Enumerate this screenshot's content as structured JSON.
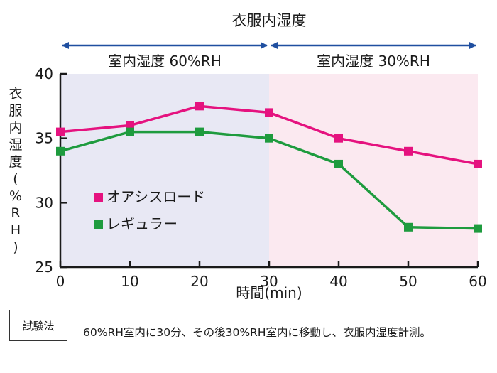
{
  "chart_data": {
    "type": "line",
    "title": "衣服内湿度",
    "xlabel": "時間(min)",
    "ylabel": "衣服内湿度(%RH)",
    "x": [
      0,
      10,
      20,
      30,
      40,
      50,
      60
    ],
    "xlim": [
      0,
      60
    ],
    "ylim": [
      25,
      40
    ],
    "xticks": [
      "0",
      "10",
      "20",
      "30",
      "40",
      "50",
      "60"
    ],
    "yticks": [
      "25",
      "30",
      "35",
      "40"
    ],
    "grid": false,
    "legend_position": "lower-left",
    "phases": [
      {
        "label": "室内湿度 60%RH",
        "from": 0,
        "to": 30,
        "color": "#e8e8f4"
      },
      {
        "label": "室内湿度 30%RH",
        "from": 30,
        "to": 60,
        "color": "#fbe9f0"
      }
    ],
    "arrow_color": "#1f4fa0",
    "series": [
      {
        "name": "オアシスロード",
        "color": "#e5127f",
        "values": [
          35.5,
          36.0,
          37.5,
          37.0,
          35.0,
          34.0,
          33.0
        ]
      },
      {
        "name": "レギュラー",
        "color": "#1e9b3e",
        "values": [
          34.0,
          35.5,
          35.5,
          35.0,
          33.0,
          28.1,
          28.0
        ]
      }
    ]
  },
  "method": {
    "label": "試験法",
    "text": "60%RH室内に30分、その後30%RH室内に移動し、衣服内湿度計測。"
  }
}
